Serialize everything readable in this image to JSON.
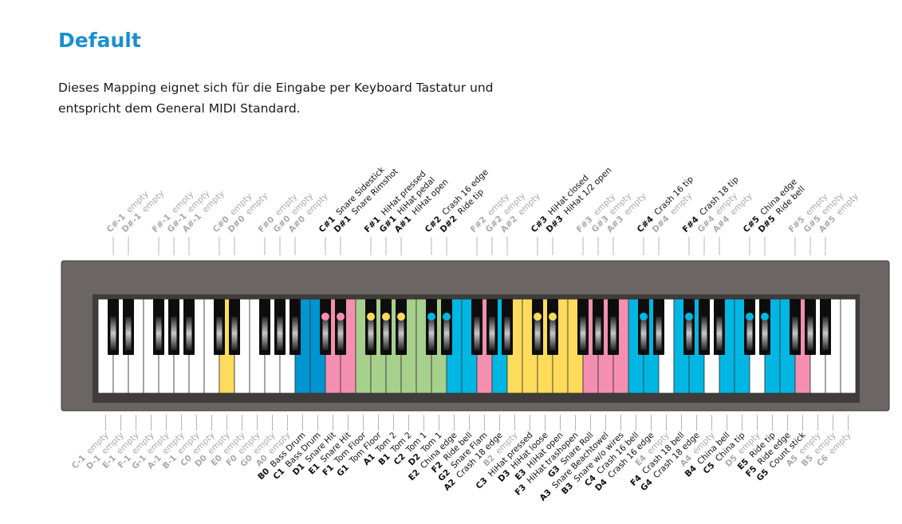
{
  "page": {
    "title": "Default",
    "description_line1": "Dieses Mapping eignet sich für die Eingabe per Keyboard Tastatur und",
    "description_line2": "entspricht dem General MIDI Standard."
  },
  "colors": {
    "title": "#1a8fd1",
    "frame": "#6b6664",
    "pink": "#f48fb1",
    "cyan": "#00b7e3",
    "blue": "#0095d0",
    "green": "#a8d08d",
    "yellow": "#fddc5c",
    "muted_text": "#aaaaaa"
  },
  "empty_label": "empty",
  "white_keys": [
    {
      "note": "C-1",
      "label": "empty",
      "color": "white"
    },
    {
      "note": "D-1",
      "label": "empty",
      "color": "white"
    },
    {
      "note": "E-1",
      "label": "empty",
      "color": "white"
    },
    {
      "note": "F-1",
      "label": "empty",
      "color": "white"
    },
    {
      "note": "G-1",
      "label": "empty",
      "color": "white"
    },
    {
      "note": "A-1",
      "label": "empty",
      "color": "white"
    },
    {
      "note": "B-1",
      "label": "empty",
      "color": "white"
    },
    {
      "note": "C0",
      "label": "empty",
      "color": "white"
    },
    {
      "note": "D0",
      "label": "empty",
      "color": "yellow"
    },
    {
      "note": "E0",
      "label": "empty",
      "color": "white"
    },
    {
      "note": "F0",
      "label": "empty",
      "color": "white"
    },
    {
      "note": "G0",
      "label": "empty",
      "color": "white"
    },
    {
      "note": "A0",
      "label": "empty",
      "color": "white"
    },
    {
      "note": "B0",
      "label": "Bass Drum",
      "color": "blue"
    },
    {
      "note": "C1",
      "label": "Bass Drum",
      "color": "blue"
    },
    {
      "note": "D1",
      "label": "Snare Hit",
      "color": "pink"
    },
    {
      "note": "E1",
      "label": "Snare Hit",
      "color": "pink"
    },
    {
      "note": "F1",
      "label": "Tom Floor",
      "color": "green"
    },
    {
      "note": "G1",
      "label": "Tom Floor",
      "color": "green"
    },
    {
      "note": "A1",
      "label": "Tom 2",
      "color": "green"
    },
    {
      "note": "B1",
      "label": "Tom 2",
      "color": "green"
    },
    {
      "note": "C2",
      "label": "Tom 1",
      "color": "green"
    },
    {
      "note": "D2",
      "label": "Tom 1",
      "color": "green"
    },
    {
      "note": "E2",
      "label": "China edge",
      "color": "cyan"
    },
    {
      "note": "F2",
      "label": "Ride bell",
      "color": "cyan"
    },
    {
      "note": "G2",
      "label": "Snare Flam",
      "color": "pink"
    },
    {
      "note": "A2",
      "label": "Crash 18 edge",
      "color": "cyan"
    },
    {
      "note": "B2",
      "label": "empty",
      "color": "yellow"
    },
    {
      "note": "C3",
      "label": "HiHat pressed",
      "color": "yellow"
    },
    {
      "note": "D3",
      "label": "HiHat loose",
      "color": "yellow"
    },
    {
      "note": "E3",
      "label": "HiHat open",
      "color": "yellow"
    },
    {
      "note": "F3",
      "label": "HiHat trashopen",
      "color": "yellow"
    },
    {
      "note": "G3",
      "label": "Snare Roll",
      "color": "pink"
    },
    {
      "note": "A3",
      "label": "Snare Beachtowel",
      "color": "pink"
    },
    {
      "note": "B3",
      "label": "Snare w/o wires",
      "color": "pink"
    },
    {
      "note": "C4",
      "label": "Crash 16 bell",
      "color": "cyan"
    },
    {
      "note": "D4",
      "label": "Crash 16 edge",
      "color": "cyan"
    },
    {
      "note": "E4",
      "label": "empty",
      "color": "white"
    },
    {
      "note": "F4",
      "label": "Crash 18 bell",
      "color": "cyan"
    },
    {
      "note": "G4",
      "label": "Crash 18 edge",
      "color": "cyan"
    },
    {
      "note": "A4",
      "label": "empty",
      "color": "white"
    },
    {
      "note": "B4",
      "label": "China bell",
      "color": "cyan"
    },
    {
      "note": "C5",
      "label": "China tip",
      "color": "cyan"
    },
    {
      "note": "D5",
      "label": "empty",
      "color": "white"
    },
    {
      "note": "E5",
      "label": "Ride tip",
      "color": "cyan"
    },
    {
      "note": "F5",
      "label": "Ride edge",
      "color": "cyan"
    },
    {
      "note": "G5",
      "label": "Count stick",
      "color": "pink"
    },
    {
      "note": "A5",
      "label": "empty",
      "color": "white"
    },
    {
      "note": "B5",
      "label": "empty",
      "color": "white"
    },
    {
      "note": "C6",
      "label": "empty",
      "color": "white"
    }
  ],
  "black_keys": [
    {
      "note": "C#-1",
      "label": "empty",
      "after_white": 0,
      "dot": ""
    },
    {
      "note": "D#-1",
      "label": "empty",
      "after_white": 1,
      "dot": ""
    },
    {
      "note": "F#-1",
      "label": "empty",
      "after_white": 3,
      "dot": ""
    },
    {
      "note": "G#-1",
      "label": "empty",
      "after_white": 4,
      "dot": ""
    },
    {
      "note": "A#-1",
      "label": "empty",
      "after_white": 5,
      "dot": ""
    },
    {
      "note": "C#0",
      "label": "empty",
      "after_white": 7,
      "dot": ""
    },
    {
      "note": "D#0",
      "label": "empty",
      "after_white": 8,
      "dot": ""
    },
    {
      "note": "F#0",
      "label": "empty",
      "after_white": 10,
      "dot": ""
    },
    {
      "note": "G#0",
      "label": "empty",
      "after_white": 11,
      "dot": ""
    },
    {
      "note": "A#0",
      "label": "empty",
      "after_white": 12,
      "dot": ""
    },
    {
      "note": "C#1",
      "label": "Snare Sidestick",
      "after_white": 14,
      "dot": "pink"
    },
    {
      "note": "D#1",
      "label": "Snare Rimshot",
      "after_white": 15,
      "dot": "pink"
    },
    {
      "note": "F#1",
      "label": "HiHat pressed",
      "after_white": 17,
      "dot": "yellow"
    },
    {
      "note": "G#1",
      "label": "HiHat pedal",
      "after_white": 18,
      "dot": "yellow"
    },
    {
      "note": "A#1",
      "label": "HiHat open",
      "after_white": 19,
      "dot": "yellow"
    },
    {
      "note": "C#2",
      "label": "Crash 16 edge",
      "after_white": 21,
      "dot": "cyan"
    },
    {
      "note": "D#2",
      "label": "Ride tip",
      "after_white": 22,
      "dot": "cyan"
    },
    {
      "note": "F#2",
      "label": "empty",
      "after_white": 24,
      "dot": ""
    },
    {
      "note": "G#2",
      "label": "empty",
      "after_white": 25,
      "dot": ""
    },
    {
      "note": "A#2",
      "label": "empty",
      "after_white": 26,
      "dot": ""
    },
    {
      "note": "C#3",
      "label": "HiHat closed",
      "after_white": 28,
      "dot": "yellow"
    },
    {
      "note": "D#3",
      "label": "HiHat 1/2 open",
      "after_white": 29,
      "dot": "yellow"
    },
    {
      "note": "F#3",
      "label": "empty",
      "after_white": 31,
      "dot": ""
    },
    {
      "note": "G#3",
      "label": "empty",
      "after_white": 32,
      "dot": ""
    },
    {
      "note": "A#3",
      "label": "empty",
      "after_white": 33,
      "dot": ""
    },
    {
      "note": "C#4",
      "label": "Crash 16 tip",
      "after_white": 35,
      "dot": "cyan"
    },
    {
      "note": "D#4",
      "label": "empty",
      "after_white": 36,
      "dot": ""
    },
    {
      "note": "F#4",
      "label": "Crash 18 tip",
      "after_white": 38,
      "dot": "cyan"
    },
    {
      "note": "G#4",
      "label": "empty",
      "after_white": 39,
      "dot": ""
    },
    {
      "note": "A#4",
      "label": "empty",
      "after_white": 40,
      "dot": ""
    },
    {
      "note": "C#5",
      "label": "China edge",
      "after_white": 42,
      "dot": "cyan"
    },
    {
      "note": "D#5",
      "label": "Ride bell",
      "after_white": 43,
      "dot": "cyan"
    },
    {
      "note": "F#5",
      "label": "empty",
      "after_white": 45,
      "dot": ""
    },
    {
      "note": "G#5",
      "label": "empty",
      "after_white": 46,
      "dot": ""
    },
    {
      "note": "A#5",
      "label": "empty",
      "after_white": 47,
      "dot": ""
    }
  ]
}
